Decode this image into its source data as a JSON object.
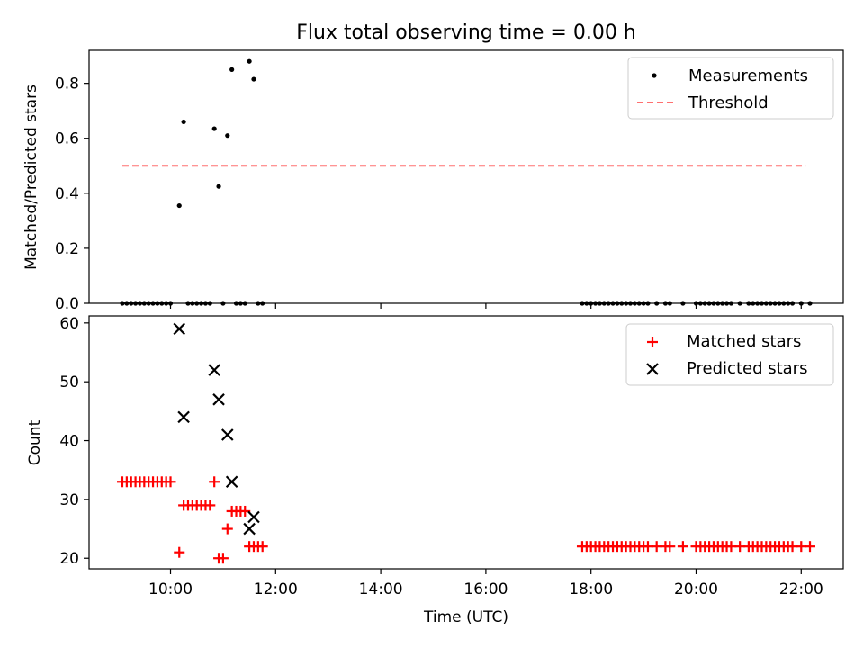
{
  "chart_data": [
    {
      "type": "scatter",
      "title": "Flux total observing time = 0.00 h",
      "xlabel": "",
      "ylabel": "Matched/Predicted stars",
      "xlim_hours": [
        8.45,
        22.8
      ],
      "ylim": [
        0,
        0.92
      ],
      "yticks": [
        "0.0",
        "0.2",
        "0.4",
        "0.6",
        "0.8"
      ],
      "legend_position": "top-right",
      "series": [
        {
          "name": "Measurements",
          "marker": "dot",
          "color": "#000000",
          "points": [
            [
              "10:10",
              0.355
            ],
            [
              "10:15",
              0.66
            ],
            [
              "10:50",
              0.635
            ],
            [
              "10:55",
              0.425
            ],
            [
              "11:05",
              0.61
            ],
            [
              "11:10",
              0.85
            ],
            [
              "11:30",
              0.88
            ],
            [
              "11:35",
              0.815
            ],
            [
              "9:05",
              0.0
            ],
            [
              "9:10",
              0.0
            ],
            [
              "9:15",
              0.0
            ],
            [
              "9:20",
              0.0
            ],
            [
              "9:25",
              0.0
            ],
            [
              "9:30",
              0.0
            ],
            [
              "9:35",
              0.0
            ],
            [
              "9:40",
              0.0
            ],
            [
              "9:45",
              0.0
            ],
            [
              "9:50",
              0.0
            ],
            [
              "9:55",
              0.0
            ],
            [
              "10:00",
              0.0
            ],
            [
              "10:20",
              0.0
            ],
            [
              "10:25",
              0.0
            ],
            [
              "10:30",
              0.0
            ],
            [
              "10:35",
              0.0
            ],
            [
              "10:40",
              0.0
            ],
            [
              "10:45",
              0.0
            ],
            [
              "11:00",
              0.0
            ],
            [
              "11:15",
              0.0
            ],
            [
              "11:20",
              0.0
            ],
            [
              "11:25",
              0.0
            ],
            [
              "11:40",
              0.0
            ],
            [
              "11:45",
              0.0
            ],
            [
              "17:50",
              0.0
            ],
            [
              "17:55",
              0.0
            ],
            [
              "18:00",
              0.0
            ],
            [
              "18:05",
              0.0
            ],
            [
              "18:10",
              0.0
            ],
            [
              "18:15",
              0.0
            ],
            [
              "18:20",
              0.0
            ],
            [
              "18:25",
              0.0
            ],
            [
              "18:30",
              0.0
            ],
            [
              "18:35",
              0.0
            ],
            [
              "18:40",
              0.0
            ],
            [
              "18:45",
              0.0
            ],
            [
              "18:50",
              0.0
            ],
            [
              "18:55",
              0.0
            ],
            [
              "19:00",
              0.0
            ],
            [
              "19:05",
              0.0
            ],
            [
              "19:15",
              0.0
            ],
            [
              "19:25",
              0.0
            ],
            [
              "19:30",
              0.0
            ],
            [
              "19:45",
              0.0
            ],
            [
              "20:00",
              0.0
            ],
            [
              "20:05",
              0.0
            ],
            [
              "20:10",
              0.0
            ],
            [
              "20:15",
              0.0
            ],
            [
              "20:20",
              0.0
            ],
            [
              "20:25",
              0.0
            ],
            [
              "20:30",
              0.0
            ],
            [
              "20:35",
              0.0
            ],
            [
              "20:40",
              0.0
            ],
            [
              "20:50",
              0.0
            ],
            [
              "21:00",
              0.0
            ],
            [
              "21:05",
              0.0
            ],
            [
              "21:10",
              0.0
            ],
            [
              "21:15",
              0.0
            ],
            [
              "21:20",
              0.0
            ],
            [
              "21:25",
              0.0
            ],
            [
              "21:30",
              0.0
            ],
            [
              "21:35",
              0.0
            ],
            [
              "21:40",
              0.0
            ],
            [
              "21:45",
              0.0
            ],
            [
              "21:50",
              0.0
            ],
            [
              "22:00",
              0.0
            ],
            [
              "22:10",
              0.0
            ]
          ]
        },
        {
          "name": "Threshold",
          "marker": "dashed-line",
          "color": "#ff7070",
          "points": [
            [
              "9:05",
              0.5
            ],
            [
              "22:05",
              0.5
            ]
          ]
        }
      ]
    },
    {
      "type": "scatter",
      "title": "",
      "xlabel": "Time (UTC)",
      "ylabel": "Count",
      "xlim_hours": [
        8.45,
        22.8
      ],
      "ylim": [
        18.2,
        61.2
      ],
      "yticks": [
        "20",
        "30",
        "40",
        "50",
        "60"
      ],
      "xticks": [
        "10:00",
        "12:00",
        "14:00",
        "16:00",
        "18:00",
        "20:00",
        "22:00"
      ],
      "legend_position": "top-right",
      "series": [
        {
          "name": "Matched stars",
          "marker": "plus",
          "color": "#ff0000",
          "points": [
            [
              "9:05",
              33
            ],
            [
              "9:10",
              33
            ],
            [
              "9:15",
              33
            ],
            [
              "9:20",
              33
            ],
            [
              "9:25",
              33
            ],
            [
              "9:30",
              33
            ],
            [
              "9:35",
              33
            ],
            [
              "9:40",
              33
            ],
            [
              "9:45",
              33
            ],
            [
              "9:50",
              33
            ],
            [
              "9:55",
              33
            ],
            [
              "10:00",
              33
            ],
            [
              "10:10",
              21
            ],
            [
              "10:15",
              29
            ],
            [
              "10:20",
              29
            ],
            [
              "10:25",
              29
            ],
            [
              "10:30",
              29
            ],
            [
              "10:35",
              29
            ],
            [
              "10:40",
              29
            ],
            [
              "10:45",
              29
            ],
            [
              "10:50",
              33
            ],
            [
              "10:55",
              20
            ],
            [
              "11:00",
              20
            ],
            [
              "11:05",
              25
            ],
            [
              "11:10",
              28
            ],
            [
              "11:15",
              28
            ],
            [
              "11:20",
              28
            ],
            [
              "11:25",
              28
            ],
            [
              "11:30",
              22
            ],
            [
              "11:35",
              22
            ],
            [
              "11:40",
              22
            ],
            [
              "11:45",
              22
            ],
            [
              "17:50",
              22
            ],
            [
              "17:55",
              22
            ],
            [
              "18:00",
              22
            ],
            [
              "18:05",
              22
            ],
            [
              "18:10",
              22
            ],
            [
              "18:15",
              22
            ],
            [
              "18:20",
              22
            ],
            [
              "18:25",
              22
            ],
            [
              "18:30",
              22
            ],
            [
              "18:35",
              22
            ],
            [
              "18:40",
              22
            ],
            [
              "18:45",
              22
            ],
            [
              "18:50",
              22
            ],
            [
              "18:55",
              22
            ],
            [
              "19:00",
              22
            ],
            [
              "19:05",
              22
            ],
            [
              "19:15",
              22
            ],
            [
              "19:25",
              22
            ],
            [
              "19:30",
              22
            ],
            [
              "19:45",
              22
            ],
            [
              "20:00",
              22
            ],
            [
              "20:05",
              22
            ],
            [
              "20:10",
              22
            ],
            [
              "20:15",
              22
            ],
            [
              "20:20",
              22
            ],
            [
              "20:25",
              22
            ],
            [
              "20:30",
              22
            ],
            [
              "20:35",
              22
            ],
            [
              "20:40",
              22
            ],
            [
              "20:50",
              22
            ],
            [
              "21:00",
              22
            ],
            [
              "21:05",
              22
            ],
            [
              "21:10",
              22
            ],
            [
              "21:15",
              22
            ],
            [
              "21:20",
              22
            ],
            [
              "21:25",
              22
            ],
            [
              "21:30",
              22
            ],
            [
              "21:35",
              22
            ],
            [
              "21:40",
              22
            ],
            [
              "21:45",
              22
            ],
            [
              "21:50",
              22
            ],
            [
              "22:00",
              22
            ],
            [
              "22:10",
              22
            ]
          ]
        },
        {
          "name": "Predicted stars",
          "marker": "x",
          "color": "#000000",
          "points": [
            [
              "10:10",
              59
            ],
            [
              "10:15",
              44
            ],
            [
              "10:50",
              52
            ],
            [
              "10:55",
              47
            ],
            [
              "11:05",
              41
            ],
            [
              "11:10",
              33
            ],
            [
              "11:30",
              25
            ],
            [
              "11:35",
              27
            ]
          ]
        }
      ]
    }
  ]
}
